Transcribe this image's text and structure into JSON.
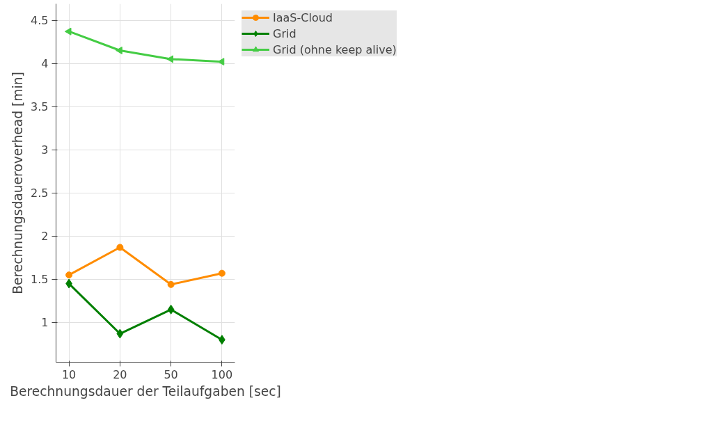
{
  "chart_data": {
    "type": "line",
    "xlabel": "Berechnungsdauer der Teilaufgaben [sec]",
    "ylabel": "Berechnungsdaueroverhead [min]",
    "categories": [
      "10",
      "20",
      "50",
      "100"
    ],
    "series": [
      {
        "name": "IaaS-Cloud",
        "color": "#ff8c00",
        "marker": "circle",
        "values": [
          1.55,
          1.87,
          1.44,
          1.57
        ]
      },
      {
        "name": "Grid",
        "color": "#007f00",
        "marker": "diamond",
        "values": [
          1.45,
          0.87,
          1.15,
          0.8
        ]
      },
      {
        "name": "Grid (ohne keep alive)",
        "color": "#44cc44",
        "marker": "triangle",
        "values": [
          4.37,
          4.15,
          4.05,
          4.02
        ]
      }
    ],
    "ylim": [
      0.54,
      4.69
    ],
    "yticks": [
      1,
      1.5,
      2,
      2.5,
      3,
      3.5,
      4,
      4.5
    ],
    "grid": true,
    "legend": "top right",
    "line_style": "solid"
  }
}
